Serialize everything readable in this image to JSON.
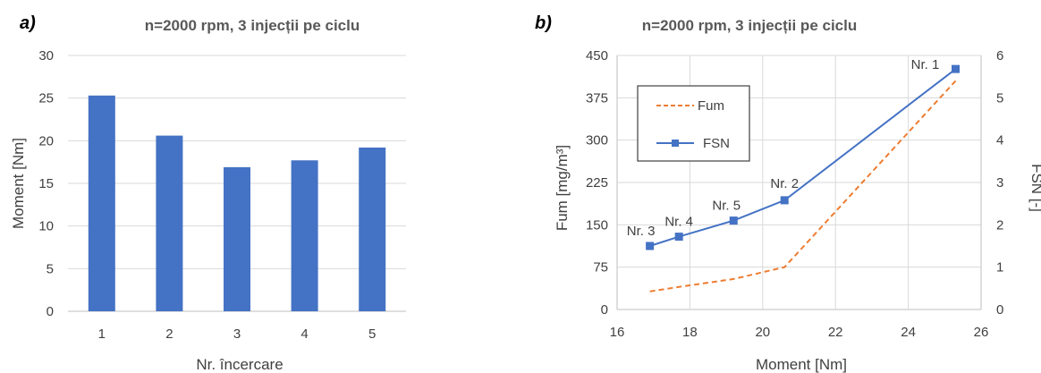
{
  "chart_data": [
    {
      "type": "bar",
      "panel_label": "a)",
      "title": "n=2000 rpm, 3 injecții pe ciclu",
      "xlabel": "Nr. încercare",
      "ylabel": "Moment [Nm]",
      "categories": [
        "1",
        "2",
        "3",
        "4",
        "5"
      ],
      "values": [
        25.3,
        20.6,
        16.9,
        17.7,
        19.2
      ],
      "ylim": [
        0,
        30
      ],
      "yticks": [
        "0",
        "5",
        "10",
        "15",
        "20",
        "25",
        "30"
      ],
      "grid": true,
      "color": "#4472c4"
    },
    {
      "type": "line",
      "panel_label": "b)",
      "title": "n=2000 rpm, 3 injecții pe ciclu",
      "xlabel": "Moment [Nm]",
      "ylabel": "Fum [mg/m³]",
      "y2label": "FSN [-]",
      "xlim": [
        16,
        26
      ],
      "xticks": [
        "16",
        "18",
        "20",
        "22",
        "24",
        "26"
      ],
      "ylim": [
        0,
        450
      ],
      "yticks": [
        "0",
        "75",
        "150",
        "225",
        "300",
        "375",
        "450"
      ],
      "y2lim": [
        0,
        6
      ],
      "y2ticks": [
        "0",
        "1",
        "2",
        "3",
        "4",
        "5",
        "6"
      ],
      "grid": true,
      "legend": "top-left",
      "series": [
        {
          "name": "Fum",
          "axis": "left",
          "style": "dashed",
          "color": "#ed7d31",
          "x": [
            16.9,
            17.7,
            19.2,
            20.6,
            25.3
          ],
          "y": [
            32,
            40,
            54,
            75,
            405
          ]
        },
        {
          "name": "FSN",
          "axis": "right",
          "style": "solid-square-markers",
          "color": "#4472c4",
          "x": [
            16.9,
            17.7,
            19.2,
            20.6,
            25.3
          ],
          "y": [
            1.5,
            1.72,
            2.1,
            2.58,
            5.68
          ]
        }
      ],
      "annotations": [
        {
          "text": "Nr. 3",
          "x": 16.9,
          "y": 1.5
        },
        {
          "text": "Nr. 4",
          "x": 17.7,
          "y": 1.72
        },
        {
          "text": "Nr. 5",
          "x": 19.2,
          "y": 2.1
        },
        {
          "text": "Nr. 2",
          "x": 20.6,
          "y": 2.58
        },
        {
          "text": "Nr. 1",
          "x": 25.3,
          "y": 5.68
        }
      ]
    }
  ]
}
